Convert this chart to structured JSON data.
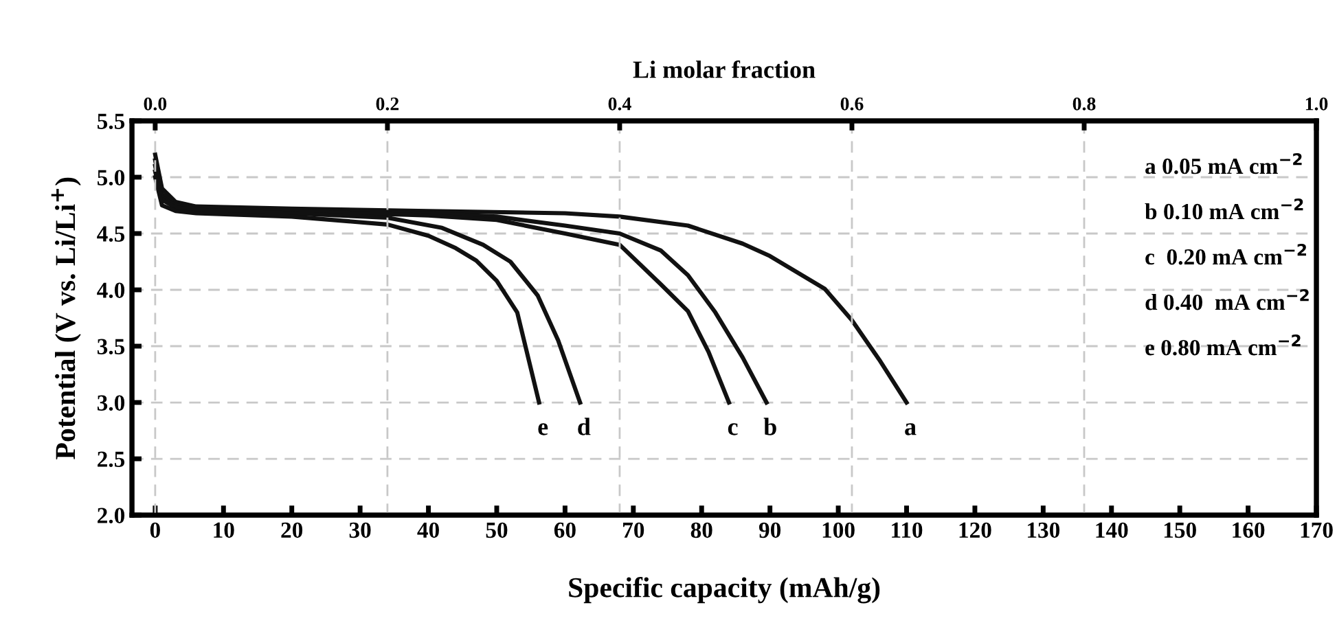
{
  "chart_data": {
    "type": "line",
    "xlabel": "Specific capacity (mAh/g)",
    "ylabel": "Potential (V vs. Li/Li$^{+}$)",
    "x2label": "Li molar fraction",
    "xlim": [
      -3.4,
      170
    ],
    "ylim": [
      2.0,
      5.5
    ],
    "x2lim": [
      -0.02,
      1.0
    ],
    "xticks": [
      0,
      10,
      20,
      30,
      40,
      50,
      60,
      70,
      80,
      90,
      100,
      110,
      120,
      130,
      140,
      150,
      160,
      170
    ],
    "yticks": [
      {
        "value": 2.0,
        "label": "2.0"
      },
      {
        "value": 2.5,
        "label": "2.5"
      },
      {
        "value": 3.0,
        "label": "3.0"
      },
      {
        "value": 3.5,
        "label": "3.5"
      },
      {
        "value": 4.0,
        "label": "4.0"
      },
      {
        "value": 4.5,
        "label": "4.5"
      },
      {
        "value": 5.0,
        "label": "5.0"
      },
      {
        "value": 5.5,
        "label": "5.5"
      }
    ],
    "x2ticks": [
      {
        "value": 0.0,
        "label": "0.0"
      },
      {
        "value": 0.2,
        "label": "0.2"
      },
      {
        "value": 0.4,
        "label": "0.4"
      },
      {
        "value": 0.6,
        "label": "0.6"
      },
      {
        "value": 0.8,
        "label": "0.8"
      },
      {
        "value": 1.0,
        "label": "1.0"
      }
    ],
    "grid": true,
    "marker": "none",
    "line_style": "solid",
    "series": [
      {
        "name": "a",
        "color": "#111111",
        "x": [
          0,
          1,
          3,
          6,
          20,
          40,
          60,
          68,
          78,
          86,
          90,
          98,
          102,
          106,
          110
        ],
        "values": [
          5.2,
          4.9,
          4.78,
          4.74,
          4.72,
          4.7,
          4.68,
          4.65,
          4.57,
          4.41,
          4.3,
          4.01,
          3.73,
          3.38,
          3.0
        ]
      },
      {
        "name": "b",
        "color": "#111111",
        "x": [
          0,
          1,
          3,
          6,
          20,
          40,
          50,
          60,
          68,
          74,
          78,
          82,
          86,
          89.5
        ],
        "values": [
          5.15,
          4.85,
          4.76,
          4.73,
          4.71,
          4.68,
          4.65,
          4.57,
          4.5,
          4.35,
          4.13,
          3.8,
          3.4,
          3.0
        ]
      },
      {
        "name": "c",
        "color": "#111111",
        "x": [
          0,
          1,
          3,
          6,
          20,
          40,
          50,
          60,
          68,
          74,
          78,
          81,
          84
        ],
        "values": [
          5.1,
          4.82,
          4.75,
          4.72,
          4.7,
          4.66,
          4.62,
          4.5,
          4.4,
          4.05,
          3.81,
          3.45,
          3.0
        ]
      },
      {
        "name": "d",
        "color": "#111111",
        "x": [
          0,
          1,
          3,
          6,
          20,
          34,
          42,
          48,
          52,
          56,
          59,
          62.2
        ],
        "values": [
          5.05,
          4.8,
          4.73,
          4.71,
          4.68,
          4.64,
          4.55,
          4.4,
          4.25,
          3.95,
          3.55,
          3.0
        ]
      },
      {
        "name": "e",
        "color": "#111111",
        "x": [
          0,
          1,
          3,
          6,
          20,
          34,
          40,
          44,
          47,
          50,
          53,
          56.2
        ],
        "values": [
          5.0,
          4.75,
          4.7,
          4.68,
          4.65,
          4.58,
          4.48,
          4.37,
          4.26,
          4.08,
          3.8,
          3.0
        ]
      }
    ],
    "annotations": [
      "a 0.05 mA cm$^{−2}$",
      "b 0.10 mA cm$^{−2}$",
      "c  0.20 mA cm$^{−2}$",
      "d 0.40  mA cm$^{−2}$",
      "e 0.80 mA cm$^{−2}$"
    ]
  }
}
